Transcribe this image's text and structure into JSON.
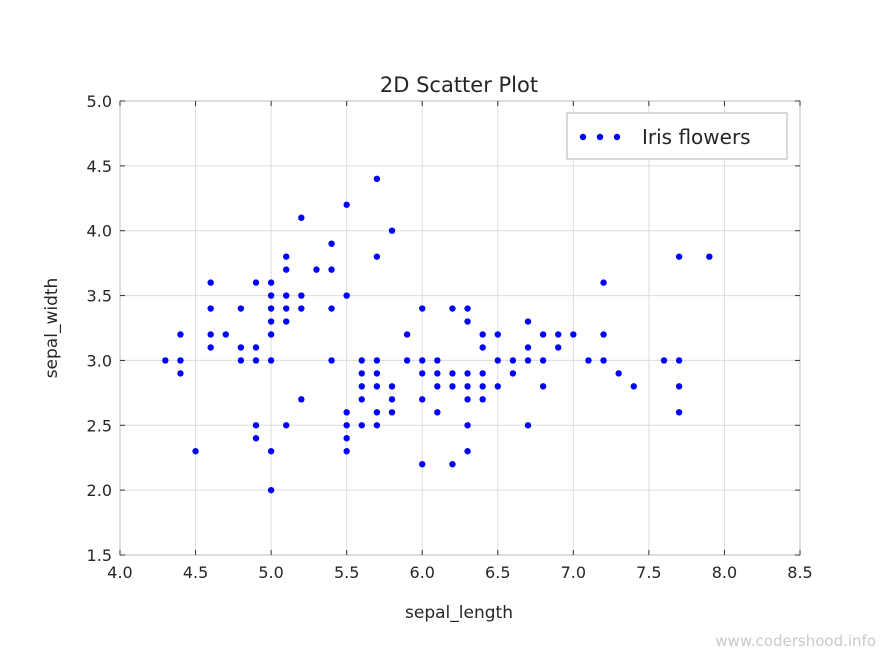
{
  "watermark": "www.codershood.info",
  "colors": {
    "point": "#0000ff",
    "grid": "#dcdcdc",
    "axis": "#333333",
    "frame": "#cccccc"
  },
  "chart_data": {
    "type": "scatter",
    "title": "2D Scatter Plot",
    "xlabel": "sepal_length",
    "ylabel": "sepal_width",
    "xlim": [
      4.0,
      8.5
    ],
    "ylim": [
      1.5,
      5.0
    ],
    "xticks": [
      "4.0",
      "4.5",
      "5.0",
      "5.5",
      "6.0",
      "6.5",
      "7.0",
      "7.5",
      "8.0",
      "8.5"
    ],
    "yticks": [
      "1.5",
      "2.0",
      "2.5",
      "3.0",
      "3.5",
      "4.0",
      "4.5",
      "5.0"
    ],
    "grid": true,
    "legend_position": "top-right",
    "series": [
      {
        "name": "Iris flowers",
        "color": "#0000ff",
        "points": [
          [
            4.3,
            3.0
          ],
          [
            4.4,
            3.2
          ],
          [
            4.4,
            3.0
          ],
          [
            4.4,
            2.9
          ],
          [
            4.5,
            2.3
          ],
          [
            4.6,
            3.6
          ],
          [
            4.6,
            3.4
          ],
          [
            4.6,
            3.2
          ],
          [
            4.6,
            3.1
          ],
          [
            4.7,
            3.2
          ],
          [
            4.8,
            3.4
          ],
          [
            4.8,
            3.1
          ],
          [
            4.8,
            3.0
          ],
          [
            4.9,
            3.6
          ],
          [
            4.9,
            3.1
          ],
          [
            4.9,
            3.0
          ],
          [
            4.9,
            2.5
          ],
          [
            4.9,
            2.4
          ],
          [
            5.0,
            3.6
          ],
          [
            5.0,
            3.5
          ],
          [
            5.0,
            3.4
          ],
          [
            5.0,
            3.3
          ],
          [
            5.0,
            3.2
          ],
          [
            5.0,
            3.0
          ],
          [
            5.0,
            2.3
          ],
          [
            5.0,
            2.0
          ],
          [
            5.1,
            3.8
          ],
          [
            5.1,
            3.7
          ],
          [
            5.1,
            3.5
          ],
          [
            5.1,
            3.4
          ],
          [
            5.1,
            3.3
          ],
          [
            5.1,
            2.5
          ],
          [
            5.2,
            4.1
          ],
          [
            5.2,
            3.5
          ],
          [
            5.2,
            3.4
          ],
          [
            5.2,
            2.7
          ],
          [
            5.3,
            3.7
          ],
          [
            5.4,
            3.9
          ],
          [
            5.4,
            3.7
          ],
          [
            5.4,
            3.4
          ],
          [
            5.4,
            3.0
          ],
          [
            5.5,
            4.2
          ],
          [
            5.5,
            3.5
          ],
          [
            5.5,
            2.6
          ],
          [
            5.5,
            2.5
          ],
          [
            5.5,
            2.4
          ],
          [
            5.5,
            2.3
          ],
          [
            5.6,
            3.0
          ],
          [
            5.6,
            2.9
          ],
          [
            5.6,
            2.8
          ],
          [
            5.6,
            2.7
          ],
          [
            5.6,
            2.5
          ],
          [
            5.7,
            4.4
          ],
          [
            5.7,
            3.8
          ],
          [
            5.7,
            3.0
          ],
          [
            5.7,
            2.9
          ],
          [
            5.7,
            2.8
          ],
          [
            5.7,
            2.6
          ],
          [
            5.7,
            2.5
          ],
          [
            5.8,
            4.0
          ],
          [
            5.8,
            2.8
          ],
          [
            5.8,
            2.7
          ],
          [
            5.8,
            2.6
          ],
          [
            5.9,
            3.2
          ],
          [
            5.9,
            3.0
          ],
          [
            6.0,
            3.4
          ],
          [
            6.0,
            3.0
          ],
          [
            6.0,
            2.9
          ],
          [
            6.0,
            2.7
          ],
          [
            6.0,
            2.2
          ],
          [
            6.1,
            3.0
          ],
          [
            6.1,
            2.9
          ],
          [
            6.1,
            2.8
          ],
          [
            6.1,
            2.6
          ],
          [
            6.2,
            3.4
          ],
          [
            6.2,
            2.9
          ],
          [
            6.2,
            2.8
          ],
          [
            6.2,
            2.2
          ],
          [
            6.3,
            3.4
          ],
          [
            6.3,
            3.3
          ],
          [
            6.3,
            2.9
          ],
          [
            6.3,
            2.8
          ],
          [
            6.3,
            2.7
          ],
          [
            6.3,
            2.5
          ],
          [
            6.3,
            2.3
          ],
          [
            6.4,
            3.2
          ],
          [
            6.4,
            3.1
          ],
          [
            6.4,
            2.9
          ],
          [
            6.4,
            2.8
          ],
          [
            6.4,
            2.7
          ],
          [
            6.5,
            3.2
          ],
          [
            6.5,
            3.0
          ],
          [
            6.5,
            2.8
          ],
          [
            6.6,
            3.0
          ],
          [
            6.6,
            2.9
          ],
          [
            6.7,
            3.3
          ],
          [
            6.7,
            3.1
          ],
          [
            6.7,
            3.0
          ],
          [
            6.7,
            2.5
          ],
          [
            6.8,
            3.2
          ],
          [
            6.8,
            3.0
          ],
          [
            6.8,
            2.8
          ],
          [
            6.9,
            3.2
          ],
          [
            6.9,
            3.1
          ],
          [
            7.0,
            3.2
          ],
          [
            7.1,
            3.0
          ],
          [
            7.2,
            3.6
          ],
          [
            7.2,
            3.2
          ],
          [
            7.2,
            3.0
          ],
          [
            7.3,
            2.9
          ],
          [
            7.4,
            2.8
          ],
          [
            7.6,
            3.0
          ],
          [
            7.7,
            3.8
          ],
          [
            7.7,
            3.0
          ],
          [
            7.7,
            2.8
          ],
          [
            7.7,
            2.6
          ],
          [
            7.9,
            3.8
          ]
        ]
      }
    ]
  }
}
